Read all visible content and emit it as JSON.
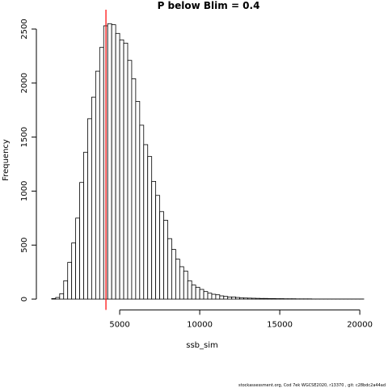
{
  "chart_data": {
    "type": "histogram",
    "title": "P below Blim = 0.4",
    "x_label": "ssb_sim",
    "y_label": "Frequency",
    "footer": "stockassessment.org, Cod 7ek WGCSE2020, r13370 , git: c28bdc2a44ad",
    "bins": [
      750,
      1000,
      1250,
      1500,
      1750,
      2000,
      2250,
      2500,
      2750,
      3000,
      3250,
      3500,
      3750,
      4000,
      4250,
      4500,
      4750,
      5000,
      5250,
      5500,
      5750,
      6000,
      6250,
      6500,
      6750,
      7000,
      7250,
      7500,
      7750,
      8000,
      8250,
      8500,
      8750,
      9000,
      9250,
      9500,
      9750,
      10000,
      10250,
      10500,
      10750,
      11000,
      11250,
      11500,
      11750,
      12000,
      12250,
      12500,
      12750,
      13000,
      13250,
      13500,
      13750,
      14000,
      14250,
      14500,
      14750,
      15000,
      15250,
      15500,
      15750,
      16000,
      16250,
      16500,
      16750,
      17000,
      17250,
      17500,
      17750,
      18000,
      18250,
      18500,
      18750,
      19000,
      19250,
      19500,
      19750,
      20000,
      20250
    ],
    "values": [
      5,
      15,
      50,
      170,
      340,
      520,
      750,
      1080,
      1360,
      1670,
      1870,
      2110,
      2330,
      2530,
      2550,
      2540,
      2460,
      2400,
      2370,
      2210,
      2040,
      1830,
      1610,
      1430,
      1320,
      1090,
      960,
      810,
      730,
      560,
      460,
      370,
      300,
      260,
      170,
      130,
      110,
      90,
      70,
      55,
      45,
      40,
      30,
      25,
      20,
      20,
      15,
      12,
      10,
      9,
      8,
      7,
      6,
      6,
      5,
      5,
      4,
      4,
      3,
      3,
      3,
      2,
      2,
      2,
      2,
      1,
      1,
      1,
      1,
      1,
      1,
      1,
      1,
      1,
      1,
      1,
      1,
      1
    ],
    "color": "#ffffff",
    "edge_color": "#000000",
    "vline": 4141,
    "vline_color": "#ff0000",
    "xlim": [
      300,
      20500
    ],
    "ylim": [
      -100,
      2600
    ],
    "xticks": [
      5000,
      10000,
      15000,
      20000
    ],
    "yticks": [
      0,
      500,
      1000,
      1500,
      2000,
      2500
    ]
  }
}
